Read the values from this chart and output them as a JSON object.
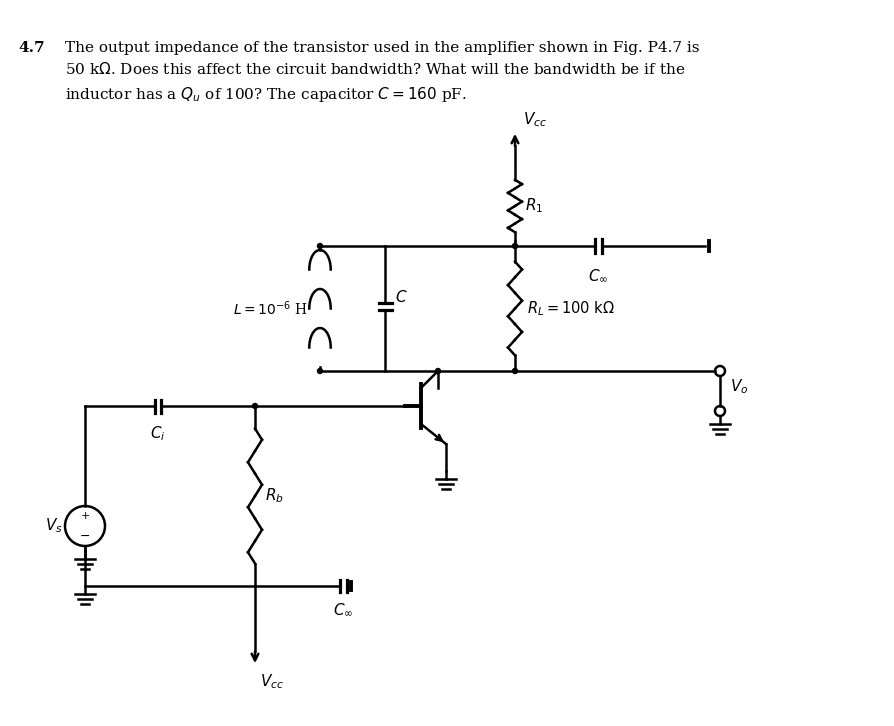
{
  "title_bold": "4.7",
  "title_text": "The output impedance of the transistor used in the amplifier shown in Fig. P4.7 is\n50 kΩ. Does this affect the circuit bandwidth? What will the bandwidth be if the\ninductor has a $Q_u$ of 100? The capacitor $C = 160$ pF.",
  "bg_color": "#ffffff",
  "line_color": "#000000",
  "lw": 1.8,
  "font_size": 11
}
